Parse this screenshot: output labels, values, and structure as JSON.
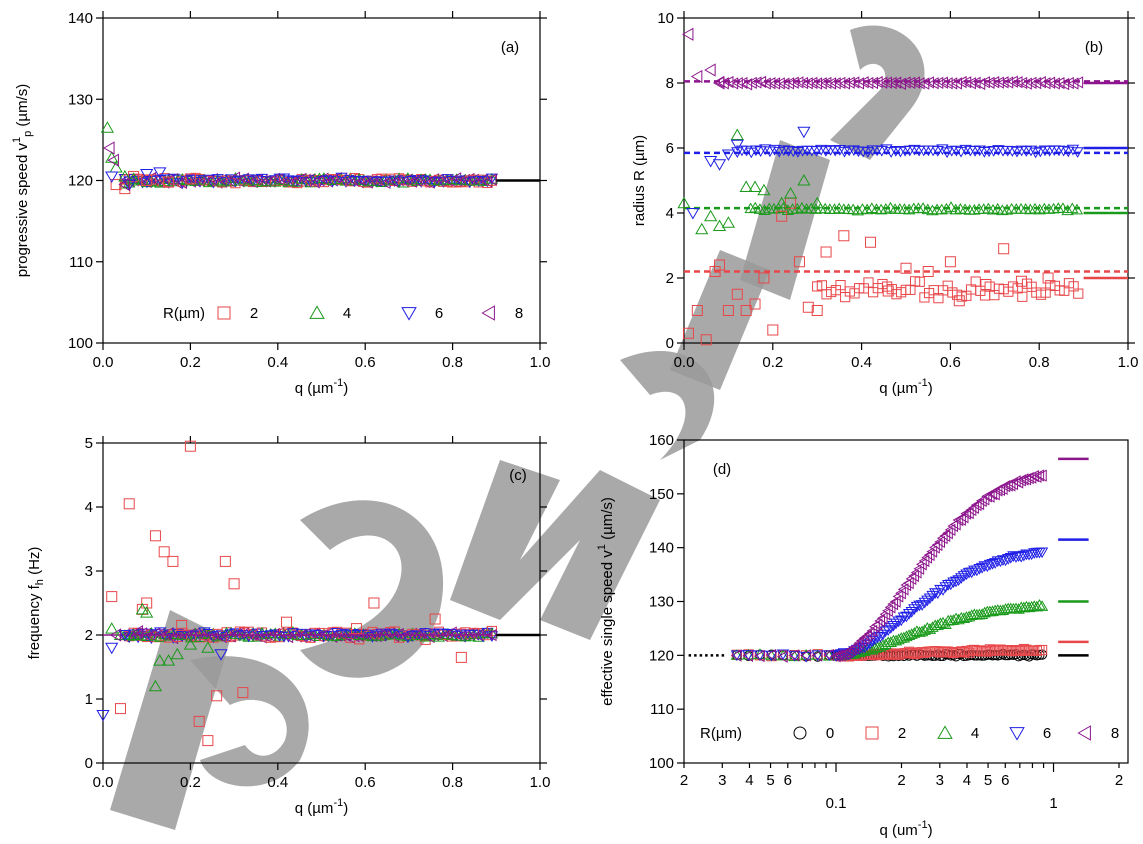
{
  "colors": {
    "R0": "#000000",
    "R2": "#e8474a",
    "R4": "#1a9a1a",
    "R6": "#1f1fe6",
    "R8": "#8c148c"
  },
  "chart_data": [
    {
      "id": "a",
      "type": "scatter",
      "panel_label": "(a)",
      "xlabel_main": "q (µm",
      "xlabel_sup": "-1",
      "xlabel_end": ")",
      "ylabel_main": "progressive speed v",
      "ylabel_sup": "1",
      "ylabel_sub": "p",
      "ylabel_end": " (µm/s)",
      "xlim": [
        0,
        1
      ],
      "ylim": [
        100,
        140
      ],
      "xticks": [
        0,
        0.2,
        0.4,
        0.6,
        0.8,
        1.0
      ],
      "xtick_labels": [
        "0.0",
        "0.2",
        "0.4",
        "0.6",
        "0.8",
        "1.0"
      ],
      "yticks": [
        100,
        110,
        120,
        130,
        140
      ],
      "ytick_labels": [
        "100",
        "110",
        "120",
        "130",
        "140"
      ],
      "legend": {
        "title": "R(µm)",
        "entries": [
          "2",
          "4",
          "6",
          "8"
        ],
        "placement": "bottom-center"
      },
      "series": [
        {
          "name": "2",
          "marker": "square",
          "color_key": "R2",
          "x": [
            0.03,
            0.05,
            0.07,
            0.1,
            0.15,
            0.2
          ],
          "y": [
            119.5,
            119.0,
            120.5,
            120.0,
            119.8,
            120.2
          ],
          "noise": 0.4
        },
        {
          "name": "4",
          "marker": "triangle-up",
          "color_key": "R4",
          "x": [
            0.01,
            0.02,
            0.03,
            0.05,
            0.07
          ],
          "y": [
            126.5,
            122.8,
            121.6,
            120.5,
            120.2
          ],
          "noise": 0.4
        },
        {
          "name": "6",
          "marker": "triangle-down",
          "color_key": "R6",
          "x": [
            0.02,
            0.06,
            0.1,
            0.13
          ],
          "y": [
            120.5,
            119.5,
            120.8,
            121.0
          ],
          "noise": 0.4
        },
        {
          "name": "8",
          "marker": "triangle-left",
          "color_key": "R8",
          "x": [
            0.015,
            0.025,
            0.05
          ],
          "y": [
            124.0,
            122.5,
            119.5
          ],
          "noise": 0.4
        }
      ],
      "dense_range": [
        0.05,
        0.89
      ],
      "dense_center": 120,
      "hlines": [
        {
          "y": 120,
          "x": [
            0.9,
            1.0
          ],
          "color_key": "R0",
          "style": "solid"
        }
      ]
    },
    {
      "id": "b",
      "type": "scatter",
      "panel_label": "(b)",
      "xlabel_main": "q (µm",
      "xlabel_sup": "-1",
      "xlabel_end": ")",
      "ylabel_main": "radius R (µm)",
      "xlim": [
        0,
        1
      ],
      "ylim": [
        0,
        10
      ],
      "xticks": [
        0,
        0.2,
        0.4,
        0.6,
        0.8,
        1.0
      ],
      "xtick_labels": [
        "0.0",
        "0.2",
        "0.4",
        "0.6",
        "0.8",
        "1.0"
      ],
      "yticks": [
        0,
        2,
        4,
        6,
        8,
        10
      ],
      "ytick_labels": [
        "0",
        "2",
        "4",
        "6",
        "8",
        "10"
      ],
      "series": [
        {
          "name": "2",
          "marker": "square",
          "color_key": "R2",
          "x": [
            0.01,
            0.03,
            0.05,
            0.07,
            0.08,
            0.1,
            0.12,
            0.14,
            0.16,
            0.18,
            0.2,
            0.22,
            0.24,
            0.26,
            0.28,
            0.3,
            0.32,
            0.36,
            0.42,
            0.46,
            0.5,
            0.55,
            0.6,
            0.62,
            0.68,
            0.72,
            0.76,
            0.82
          ],
          "y": [
            0.3,
            1.0,
            0.1,
            2.2,
            2.4,
            1.0,
            1.5,
            1.0,
            1.2,
            2.0,
            0.4,
            3.9,
            4.3,
            2.5,
            1.1,
            1.0,
            2.8,
            3.3,
            3.1,
            1.6,
            2.3,
            2.2,
            2.5,
            1.3,
            1.8,
            2.9,
            1.9,
            2.0
          ],
          "noise": 0
        },
        {
          "name": "4",
          "marker": "triangle-up",
          "color_key": "R4",
          "x": [
            0.0,
            0.04,
            0.06,
            0.08,
            0.1,
            0.12,
            0.14,
            0.16,
            0.18,
            0.22,
            0.24,
            0.27,
            0.3
          ],
          "y": [
            4.3,
            3.5,
            3.9,
            3.6,
            3.7,
            6.4,
            4.8,
            4.8,
            4.7,
            4.3,
            4.6,
            5.0,
            4.3
          ],
          "noise": 0
        },
        {
          "name": "6",
          "marker": "triangle-down",
          "color_key": "R6",
          "x": [
            0.02,
            0.06,
            0.08,
            0.1,
            0.12,
            0.27
          ],
          "y": [
            4.0,
            5.6,
            5.5,
            5.8,
            6.1,
            6.5
          ],
          "noise": 0
        },
        {
          "name": "8",
          "marker": "triangle-left",
          "color_key": "R8",
          "x": [
            0.01,
            0.03,
            0.06,
            0.08
          ],
          "y": [
            9.5,
            8.2,
            8.4,
            8.0
          ],
          "noise": 0
        }
      ],
      "dense_tracks": [
        {
          "color_key": "R2",
          "marker": "square",
          "y": 1.6,
          "noise": 0.35,
          "from": 0.3
        },
        {
          "color_key": "R4",
          "marker": "triangle-up",
          "y": 4.12,
          "noise": 0.07,
          "from": 0.15
        },
        {
          "color_key": "R6",
          "marker": "triangle-down",
          "y": 5.92,
          "noise": 0.07,
          "from": 0.12
        },
        {
          "color_key": "R8",
          "marker": "triangle-left",
          "y": 8.0,
          "noise": 0.05,
          "from": 0.08
        }
      ],
      "dashed_lines": [
        {
          "y": 2.2,
          "color_key": "R2"
        },
        {
          "y": 4.15,
          "color_key": "R4"
        },
        {
          "y": 5.85,
          "color_key": "R6"
        },
        {
          "y": 8.05,
          "color_key": "R8"
        }
      ],
      "hlines": [
        {
          "y": 2,
          "x": [
            0.9,
            1.0
          ],
          "color_key": "R2",
          "style": "solid"
        },
        {
          "y": 4,
          "x": [
            0.9,
            1.0
          ],
          "color_key": "R4",
          "style": "solid"
        },
        {
          "y": 6,
          "x": [
            0.9,
            1.0
          ],
          "color_key": "R6",
          "style": "solid"
        },
        {
          "y": 8,
          "x": [
            0.9,
            1.0
          ],
          "color_key": "R8",
          "style": "solid"
        }
      ]
    },
    {
      "id": "c",
      "type": "scatter",
      "panel_label": "(c)",
      "xlabel_main": "q (µm",
      "xlabel_sup": "-1",
      "xlabel_end": ")",
      "ylabel_main": "frequency f",
      "ylabel_sub": "h",
      "ylabel_end": " (Hz)",
      "xlim": [
        0,
        1
      ],
      "ylim": [
        0,
        5
      ],
      "xticks": [
        0,
        0.2,
        0.4,
        0.6,
        0.8,
        1.0
      ],
      "xtick_labels": [
        "0.0",
        "0.2",
        "0.4",
        "0.6",
        "0.8",
        "1.0"
      ],
      "yticks": [
        0,
        1,
        2,
        3,
        4,
        5
      ],
      "ytick_labels": [
        "0",
        "1",
        "2",
        "3",
        "4",
        "5"
      ],
      "series": [
        {
          "name": "2",
          "marker": "square",
          "color_key": "R2",
          "x": [
            0.02,
            0.04,
            0.06,
            0.09,
            0.1,
            0.12,
            0.14,
            0.16,
            0.18,
            0.2,
            0.22,
            0.24,
            0.26,
            0.28,
            0.3,
            0.32,
            0.42,
            0.58,
            0.62,
            0.76,
            0.82
          ],
          "y": [
            2.6,
            0.85,
            4.05,
            2.4,
            2.5,
            3.55,
            3.3,
            3.15,
            2.15,
            4.95,
            0.65,
            0.35,
            1.05,
            3.15,
            2.8,
            1.1,
            2.2,
            2.1,
            2.5,
            2.25,
            1.65
          ],
          "noise": 0
        },
        {
          "name": "4",
          "marker": "triangle-up",
          "color_key": "R4",
          "x": [
            0.02,
            0.04,
            0.07,
            0.09,
            0.1,
            0.12,
            0.13,
            0.15,
            0.17,
            0.2,
            0.24
          ],
          "y": [
            2.1,
            2.0,
            2.0,
            2.4,
            2.35,
            1.2,
            1.6,
            1.6,
            1.7,
            1.85,
            1.8
          ],
          "noise": 0
        },
        {
          "name": "6",
          "marker": "triangle-down",
          "color_key": "R6",
          "x": [
            0.0,
            0.02,
            0.05,
            0.27
          ],
          "y": [
            0.75,
            1.8,
            2.0,
            1.7
          ],
          "noise": 0
        },
        {
          "name": "8",
          "marker": "triangle-left",
          "color_key": "R8",
          "x": [
            0.03,
            0.08
          ],
          "y": [
            2.0,
            2.05
          ],
          "noise": 0
        }
      ],
      "dense_range": [
        0.05,
        0.89
      ],
      "dense_center": 2.0,
      "dense_noise": 0.06,
      "hlines": [
        {
          "y": 2,
          "x": [
            0.9,
            1.0
          ],
          "color_key": "R0",
          "style": "solid"
        }
      ]
    },
    {
      "id": "d",
      "type": "scatter",
      "panel_label": "(d)",
      "xlabel_main": "q (um",
      "xlabel_sup": "-1",
      "xlabel_end": ")",
      "ylabel_main": "effective single speed v",
      "ylabel_sup": "1",
      "ylabel_end": " (µm/s)",
      "xscale": "log",
      "xlim": [
        0.02,
        2.2
      ],
      "ylim": [
        100,
        160
      ],
      "xticks_major": [
        0.1,
        1
      ],
      "xtick_labels_major": [
        "0.1",
        "1"
      ],
      "xticks_minor": [
        0.02,
        0.03,
        0.04,
        0.05,
        0.06,
        0.2,
        0.3,
        0.4,
        0.5,
        0.6,
        2
      ],
      "xtick_labels_minor": [
        "2",
        "3",
        "4",
        "5",
        "6",
        "2",
        "3",
        "4",
        "5",
        "6",
        "2"
      ],
      "yticks": [
        100,
        110,
        120,
        130,
        140,
        150,
        160
      ],
      "ytick_labels": [
        "100",
        "110",
        "120",
        "130",
        "140",
        "150",
        "160"
      ],
      "legend": {
        "title": "R(µm)",
        "entries": [
          "0",
          "2",
          "4",
          "6",
          "8"
        ],
        "placement": "bottom-right"
      },
      "curves": [
        {
          "name": "0",
          "marker": "circle",
          "color_key": "R0",
          "plateau": 120,
          "asym": 120.0
        },
        {
          "name": "2",
          "marker": "square",
          "color_key": "R2",
          "plateau": 120,
          "asym": 121.0
        },
        {
          "name": "4",
          "marker": "triangle-up",
          "color_key": "R4",
          "plateau": 120,
          "asym": 129.5
        },
        {
          "name": "6",
          "marker": "triangle-down",
          "color_key": "R6",
          "plateau": 120,
          "asym": 140.0
        },
        {
          "name": "8",
          "marker": "triangle-left",
          "color_key": "R8",
          "plateau": 120,
          "asym": 155.0
        }
      ],
      "x_range": [
        0.035,
        0.9
      ],
      "hlines": [
        {
          "y": 156.5,
          "x": [
            1.05,
            1.45
          ],
          "color_key": "R8",
          "style": "solid"
        },
        {
          "y": 141.5,
          "x": [
            1.05,
            1.45
          ],
          "color_key": "R6",
          "style": "solid"
        },
        {
          "y": 130.0,
          "x": [
            1.05,
            1.45
          ],
          "color_key": "R4",
          "style": "solid"
        },
        {
          "y": 122.5,
          "x": [
            1.05,
            1.45
          ],
          "color_key": "R2",
          "style": "solid"
        },
        {
          "y": 120.0,
          "x": [
            1.05,
            1.45
          ],
          "color_key": "R0",
          "style": "solid"
        },
        {
          "y": 120.0,
          "x": [
            0.021,
            0.031
          ],
          "color_key": "R0",
          "style": "dotted"
        }
      ]
    }
  ]
}
